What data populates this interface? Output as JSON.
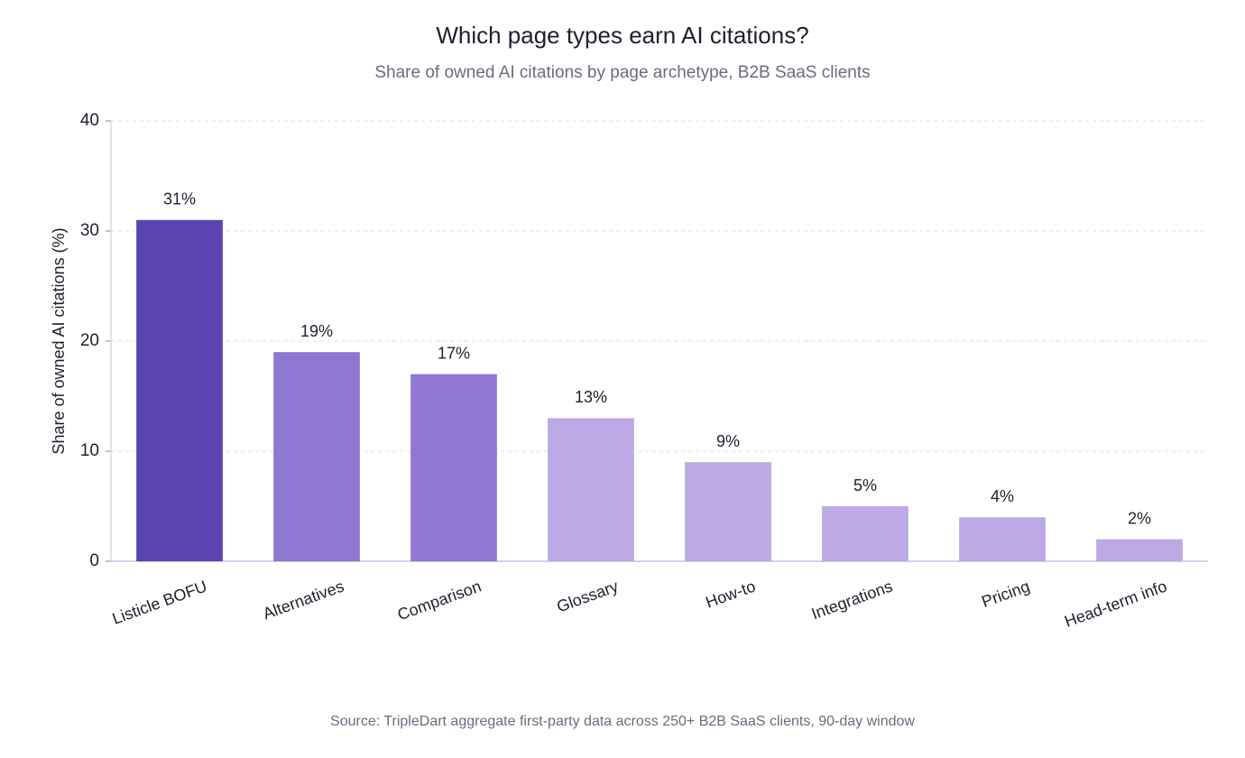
{
  "chart_data": {
    "type": "bar",
    "title": "Which page types earn AI citations?",
    "subtitle": "Share of owned AI citations by page archetype, B2B SaaS clients",
    "y_label": "Share of owned AI citations (%)",
    "source": "Source: TripleDart aggregate first-party data across 250+ B2B SaaS clients, 90-day window",
    "categories": [
      "Listicle BOFU",
      "Alternatives",
      "Comparison",
      "Glossary",
      "How-to",
      "Integrations",
      "Pricing",
      "Head-term info"
    ],
    "values": [
      31,
      19,
      17,
      13,
      9,
      5,
      4,
      2
    ],
    "value_labels": [
      "31%",
      "19%",
      "17%",
      "13%",
      "9%",
      "5%",
      "4%",
      "2%"
    ],
    "colors": [
      "#5b45b0",
      "#8e78d2",
      "#8e78d2",
      "#bca9e5",
      "#bca9e5",
      "#bca9e5",
      "#bca9e5",
      "#bca9e5"
    ],
    "ylim": [
      0,
      40
    ],
    "yticks": [
      0,
      10,
      20,
      30,
      40
    ],
    "grid": true
  }
}
